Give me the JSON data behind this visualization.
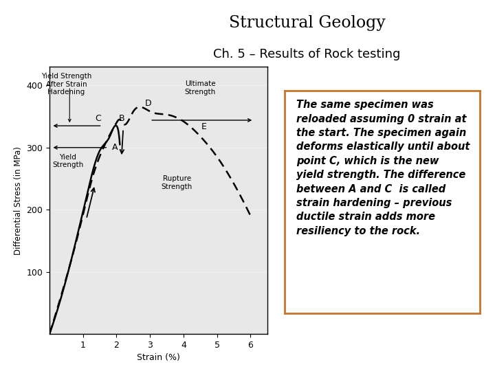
{
  "title_line1": "Structural Geology",
  "title_line2": "Ch. 5 – Results of Rock testing",
  "xlabel": "Strain (%)",
  "ylabel": "Differential Stress (in MPa)",
  "xlim": [
    0,
    6.5
  ],
  "ylim": [
    0,
    430
  ],
  "xticks": [
    1,
    2,
    3,
    4,
    5,
    6
  ],
  "yticks": [
    100,
    200,
    300,
    400
  ],
  "background_color": "#ffffff",
  "solid_curve_x": [
    0.0,
    0.3,
    0.7,
    1.1,
    1.5,
    1.8,
    2.0,
    2.05,
    2.1
  ],
  "solid_curve_y": [
    0,
    50,
    130,
    220,
    295,
    318,
    335,
    328,
    305
  ],
  "dashed_curve_x": [
    0.0,
    0.2,
    0.5,
    0.9,
    1.3,
    1.7,
    2.0,
    2.1,
    2.2,
    2.5,
    3.0,
    3.5,
    4.0,
    4.5,
    5.0,
    5.5,
    6.0
  ],
  "dashed_curve_y": [
    0,
    35,
    90,
    170,
    255,
    310,
    340,
    345,
    338,
    358,
    358,
    353,
    342,
    318,
    285,
    242,
    190
  ],
  "point_A_x": 1.8,
  "point_A_y": 318,
  "point_B_x": 2.0,
  "point_B_y": 335,
  "point_C_x": 1.62,
  "point_C_y": 335,
  "point_D_x": 2.9,
  "point_D_y": 358,
  "point_E_x": 4.6,
  "point_E_y": 318,
  "text_box_text": "The same specimen was\nreloaded assuming 0 strain at\nthe start. The specimen again\ndeforms elastically until about\npoint C, which is the new\nyield strength. The difference\nbetween A and C  is called\nstrain hardening – previous\nductile strain adds more\nresiliency to the rock.",
  "text_box_border_color": "#c8762a",
  "font_color": "#000000"
}
